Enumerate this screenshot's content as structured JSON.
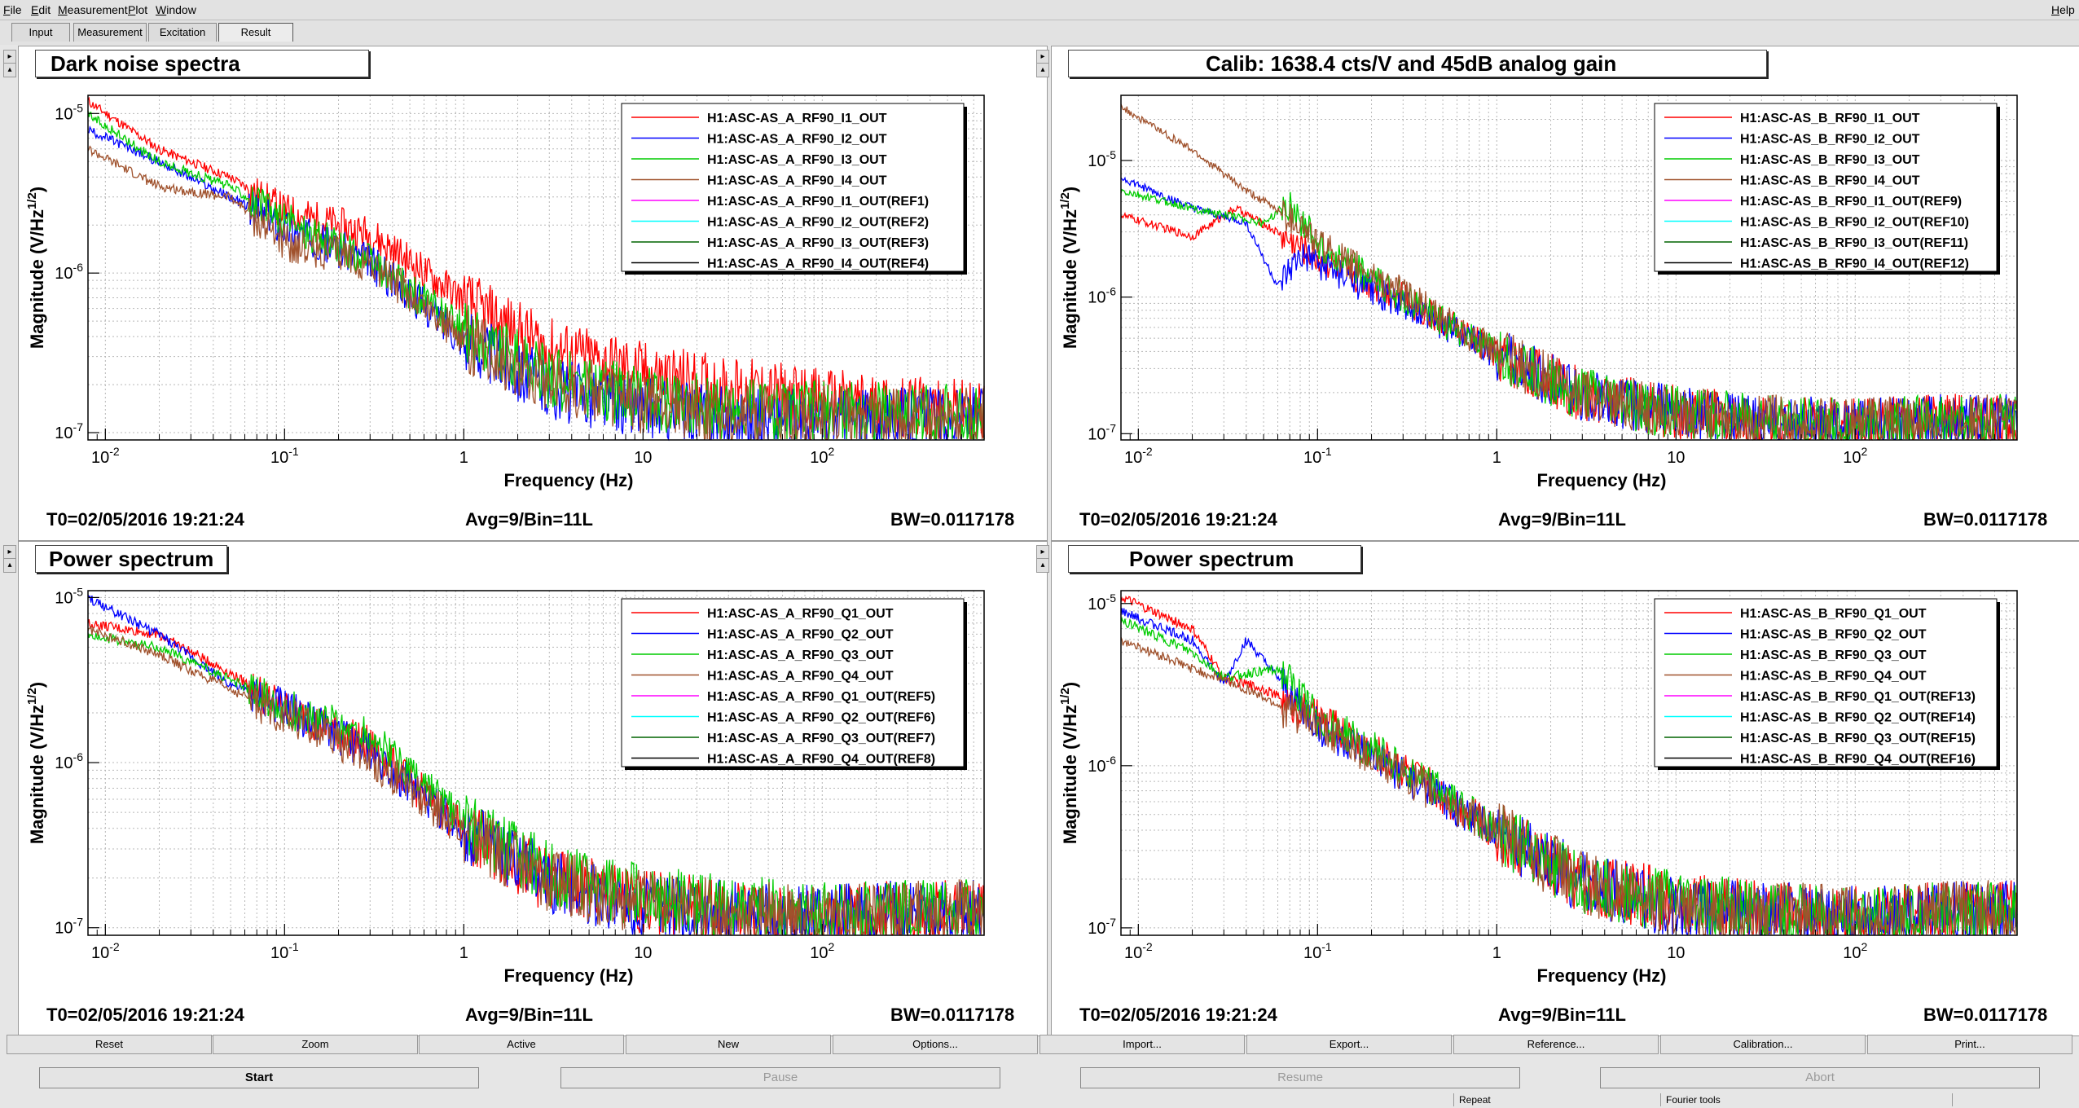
{
  "menu": {
    "left": [
      "File",
      "Edit",
      "Measurement",
      "Plot",
      "Window"
    ],
    "right": "Help"
  },
  "tabs": [
    "Input",
    "Measurement",
    "Excitation",
    "Result"
  ],
  "active_tab": "Result",
  "colors": {
    "red": "#ff0000",
    "blue": "#0000ff",
    "green": "#00cc00",
    "brown": "#a0522d",
    "magenta": "#ff00ff",
    "cyan": "#00ffff",
    "darkgreen": "#006400",
    "black": "#000000"
  },
  "panels": [
    {
      "title": "Dark noise spectra",
      "t0": "T0=02/05/2016 19:21:24",
      "avg": "Avg=9/Bin=11L",
      "bw": "BW=0.0117178"
    },
    {
      "title": "Calib: 1638.4 cts/V and 45dB analog gain",
      "t0": "T0=02/05/2016 19:21:24",
      "avg": "Avg=9/Bin=11L",
      "bw": "BW=0.0117178"
    },
    {
      "title": "Power spectrum",
      "t0": "T0=02/05/2016 19:21:24",
      "avg": "Avg=9/Bin=11L",
      "bw": "BW=0.0117178"
    },
    {
      "title": "Power spectrum",
      "t0": "T0=02/05/2016 19:21:24",
      "avg": "Avg=9/Bin=11L",
      "bw": "BW=0.0117178"
    }
  ],
  "chart_data": [
    {
      "type": "line",
      "xlabel": "Frequency (Hz)",
      "ylabel": "Magnitude (V/Hz^1/2)",
      "xscale": "log",
      "yscale": "log",
      "xlim": [
        0.008,
        800
      ],
      "ylim": [
        9e-08,
        1.3e-05
      ],
      "x_ticks": [
        "10^-2",
        "10^-1",
        "1",
        "10",
        "10^2"
      ],
      "y_ticks": [
        "10^-7",
        "10^-6",
        "10^-5"
      ],
      "grid": true,
      "legend_position": "top-right",
      "series": [
        {
          "name": "H1:ASC-AS_A_RF90_I1_OUT",
          "color": "red",
          "x": [
            0.008,
            0.02,
            0.05,
            0.1,
            0.3,
            1,
            3,
            10,
            30,
            100,
            300,
            800
          ],
          "y": [
            1.2e-05,
            6e-06,
            4e-06,
            2.5e-06,
            1.8e-06,
            7e-07,
            3.5e-07,
            2.5e-07,
            2e-07,
            1.7e-07,
            1.5e-07,
            1.4e-07
          ]
        },
        {
          "name": "H1:ASC-AS_A_RF90_I2_OUT",
          "color": "blue",
          "x": [
            0.008,
            0.02,
            0.05,
            0.1,
            0.3,
            1,
            3,
            10,
            30,
            100,
            300,
            800
          ],
          "y": [
            8e-06,
            5e-06,
            3e-06,
            2e-06,
            1.2e-06,
            4e-07,
            2e-07,
            1.5e-07,
            1.3e-07,
            1.2e-07,
            1.3e-07,
            1.3e-07
          ]
        },
        {
          "name": "H1:ASC-AS_A_RF90_I3_OUT",
          "color": "green",
          "x": [
            0.008,
            0.02,
            0.05,
            0.1,
            0.3,
            1,
            3,
            10,
            30,
            100,
            300,
            800
          ],
          "y": [
            1e-05,
            5e-06,
            3.5e-06,
            2.2e-06,
            1.2e-06,
            4.5e-07,
            2.3e-07,
            1.7e-07,
            1.5e-07,
            1.4e-07,
            1.4e-07,
            1.3e-07
          ]
        },
        {
          "name": "H1:ASC-AS_A_RF90_I4_OUT",
          "color": "brown",
          "x": [
            0.008,
            0.02,
            0.05,
            0.1,
            0.3,
            1,
            3,
            10,
            30,
            100,
            300,
            800
          ],
          "y": [
            6e-06,
            3.5e-06,
            3e-06,
            1.6e-06,
            1.2e-06,
            4e-07,
            2.2e-07,
            1.6e-07,
            1.4e-07,
            1.3e-07,
            1.3e-07,
            1.3e-07
          ]
        },
        {
          "name": "H1:ASC-AS_A_RF90_I1_OUT(REF1)",
          "color": "magenta"
        },
        {
          "name": "H1:ASC-AS_A_RF90_I2_OUT(REF2)",
          "color": "cyan"
        },
        {
          "name": "H1:ASC-AS_A_RF90_I3_OUT(REF3)",
          "color": "darkgreen"
        },
        {
          "name": "H1:ASC-AS_A_RF90_I4_OUT(REF4)",
          "color": "black"
        }
      ]
    },
    {
      "type": "line",
      "xlabel": "Frequency (Hz)",
      "ylabel": "Magnitude (V/Hz^1/2)",
      "xscale": "log",
      "yscale": "log",
      "xlim": [
        0.008,
        800
      ],
      "ylim": [
        9e-08,
        3e-05
      ],
      "x_ticks": [
        "10^-2",
        "10^-1",
        "1",
        "10",
        "10^2"
      ],
      "y_ticks": [
        "10^-7",
        "10^-6",
        "10^-5"
      ],
      "grid": true,
      "legend_position": "top-right",
      "series": [
        {
          "name": "H1:ASC-AS_B_RF90_I1_OUT",
          "color": "red",
          "x": [
            0.008,
            0.02,
            0.035,
            0.06,
            0.1,
            0.3,
            1,
            3,
            10,
            30,
            100,
            300,
            800
          ],
          "y": [
            4e-06,
            2.8e-06,
            4.5e-06,
            3e-06,
            2e-06,
            1e-06,
            4e-07,
            2e-07,
            1.5e-07,
            1.3e-07,
            1.2e-07,
            1.3e-07,
            1.3e-07
          ]
        },
        {
          "name": "H1:ASC-AS_B_RF90_I2_OUT",
          "color": "blue",
          "x": [
            0.008,
            0.02,
            0.04,
            0.06,
            0.08,
            0.1,
            0.3,
            1,
            3,
            10,
            30,
            100,
            300,
            800
          ],
          "y": [
            7.5e-06,
            4.5e-06,
            3.5e-06,
            1.2e-06,
            2e-06,
            1.8e-06,
            9e-07,
            4e-07,
            2e-07,
            1.5e-07,
            1.3e-07,
            1.2e-07,
            1.3e-07,
            1.3e-07
          ]
        },
        {
          "name": "H1:ASC-AS_B_RF90_I3_OUT",
          "color": "green",
          "x": [
            0.008,
            0.02,
            0.05,
            0.07,
            0.1,
            0.3,
            1,
            3,
            10,
            30,
            100,
            300,
            800
          ],
          "y": [
            6e-06,
            4.5e-06,
            3.5e-06,
            5e-06,
            2.5e-06,
            1e-06,
            4e-07,
            2e-07,
            1.5e-07,
            1.3e-07,
            1.2e-07,
            1.3e-07,
            1.3e-07
          ]
        },
        {
          "name": "H1:ASC-AS_B_RF90_I4_OUT",
          "color": "brown",
          "x": [
            0.008,
            0.02,
            0.04,
            0.08,
            0.1,
            0.3,
            1,
            3,
            10,
            30,
            100,
            300,
            800
          ],
          "y": [
            2.5e-05,
            1.2e-05,
            6e-06,
            3.5e-06,
            2.5e-06,
            1.1e-06,
            4e-07,
            2e-07,
            1.5e-07,
            1.3e-07,
            1.2e-07,
            1.3e-07,
            1.3e-07
          ]
        },
        {
          "name": "H1:ASC-AS_B_RF90_I1_OUT(REF9)",
          "color": "magenta"
        },
        {
          "name": "H1:ASC-AS_B_RF90_I2_OUT(REF10)",
          "color": "cyan"
        },
        {
          "name": "H1:ASC-AS_B_RF90_I3_OUT(REF11)",
          "color": "darkgreen"
        },
        {
          "name": "H1:ASC-AS_B_RF90_I4_OUT(REF12)",
          "color": "black"
        }
      ]
    },
    {
      "type": "line",
      "xlabel": "Frequency (Hz)",
      "ylabel": "Magnitude (V/Hz^1/2)",
      "xscale": "log",
      "yscale": "log",
      "xlim": [
        0.008,
        800
      ],
      "ylim": [
        9e-08,
        1.1e-05
      ],
      "x_ticks": [
        "10^-2",
        "10^-1",
        "1",
        "10",
        "10^2"
      ],
      "y_ticks": [
        "10^-7",
        "10^-6",
        "10^-5"
      ],
      "grid": true,
      "legend_position": "top-right",
      "series": [
        {
          "name": "H1:ASC-AS_A_RF90_Q1_OUT",
          "color": "red",
          "x": [
            0.008,
            0.02,
            0.05,
            0.1,
            0.3,
            1,
            3,
            10,
            30,
            100,
            300,
            800
          ],
          "y": [
            7e-06,
            6e-06,
            3.5e-06,
            2.2e-06,
            1.3e-06,
            4e-07,
            2e-07,
            1.5e-07,
            1.3e-07,
            1.2e-07,
            1.3e-07,
            1.3e-07
          ]
        },
        {
          "name": "H1:ASC-AS_A_RF90_Q2_OUT",
          "color": "blue",
          "x": [
            0.008,
            0.02,
            0.05,
            0.1,
            0.3,
            1,
            3,
            10,
            30,
            100,
            300,
            800
          ],
          "y": [
            1e-05,
            6e-06,
            3e-06,
            2.2e-06,
            1.2e-06,
            4e-07,
            2e-07,
            1.4e-07,
            1.3e-07,
            1.2e-07,
            1.3e-07,
            1.3e-07
          ]
        },
        {
          "name": "H1:ASC-AS_A_RF90_Q3_OUT",
          "color": "green",
          "x": [
            0.008,
            0.02,
            0.05,
            0.1,
            0.3,
            1,
            3,
            10,
            30,
            100,
            300,
            800
          ],
          "y": [
            6e-06,
            5e-06,
            3.2e-06,
            2.2e-06,
            1.5e-06,
            4.5e-07,
            2.2e-07,
            1.6e-07,
            1.4e-07,
            1.3e-07,
            1.3e-07,
            1.3e-07
          ]
        },
        {
          "name": "H1:ASC-AS_A_RF90_Q4_OUT",
          "color": "brown",
          "x": [
            0.008,
            0.02,
            0.05,
            0.1,
            0.3,
            1,
            3,
            10,
            30,
            100,
            300,
            800
          ],
          "y": [
            6.5e-06,
            4.5e-06,
            2.8e-06,
            2e-06,
            1.1e-06,
            4e-07,
            2e-07,
            1.5e-07,
            1.3e-07,
            1.2e-07,
            1.3e-07,
            1.3e-07
          ]
        },
        {
          "name": "H1:ASC-AS_A_RF90_Q1_OUT(REF5)",
          "color": "magenta"
        },
        {
          "name": "H1:ASC-AS_A_RF90_Q2_OUT(REF6)",
          "color": "cyan"
        },
        {
          "name": "H1:ASC-AS_A_RF90_Q3_OUT(REF7)",
          "color": "darkgreen"
        },
        {
          "name": "H1:ASC-AS_A_RF90_Q4_OUT(REF8)",
          "color": "black"
        }
      ]
    },
    {
      "type": "line",
      "xlabel": "Frequency (Hz)",
      "ylabel": "Magnitude (V/Hz^1/2)",
      "xscale": "log",
      "yscale": "log",
      "xlim": [
        0.008,
        800
      ],
      "ylim": [
        9e-08,
        1.2e-05
      ],
      "x_ticks": [
        "10^-2",
        "10^-1",
        "1",
        "10",
        "10^2"
      ],
      "y_ticks": [
        "10^-7",
        "10^-6",
        "10^-5"
      ],
      "grid": true,
      "legend_position": "top-right",
      "series": [
        {
          "name": "H1:ASC-AS_B_RF90_Q1_OUT",
          "color": "red",
          "x": [
            0.008,
            0.02,
            0.03,
            0.05,
            0.1,
            0.3,
            1,
            3,
            10,
            30,
            100,
            300,
            800
          ],
          "y": [
            1.1e-05,
            7e-06,
            3.5e-06,
            3e-06,
            2e-06,
            1e-06,
            4e-07,
            2e-07,
            1.5e-07,
            1.3e-07,
            1.2e-07,
            1.3e-07,
            1.3e-07
          ]
        },
        {
          "name": "H1:ASC-AS_B_RF90_Q2_OUT",
          "color": "blue",
          "x": [
            0.008,
            0.02,
            0.03,
            0.04,
            0.06,
            0.1,
            0.3,
            1,
            3,
            10,
            30,
            100,
            300,
            800
          ],
          "y": [
            9e-06,
            6e-06,
            3.2e-06,
            6e-06,
            3.5e-06,
            1.8e-06,
            9e-07,
            4e-07,
            2e-07,
            1.4e-07,
            1.3e-07,
            1.2e-07,
            1.3e-07,
            1.3e-07
          ]
        },
        {
          "name": "H1:ASC-AS_B_RF90_Q3_OUT",
          "color": "green",
          "x": [
            0.008,
            0.02,
            0.03,
            0.06,
            0.1,
            0.3,
            1,
            3,
            10,
            30,
            100,
            300,
            800
          ],
          "y": [
            8e-06,
            5e-06,
            3.5e-06,
            4e-06,
            2e-06,
            1e-06,
            4e-07,
            2e-07,
            1.5e-07,
            1.3e-07,
            1.2e-07,
            1.3e-07,
            1.3e-07
          ]
        },
        {
          "name": "H1:ASC-AS_B_RF90_Q4_OUT",
          "color": "brown",
          "x": [
            0.008,
            0.02,
            0.04,
            0.07,
            0.1,
            0.3,
            1,
            3,
            10,
            30,
            100,
            300,
            800
          ],
          "y": [
            6e-06,
            4e-06,
            3e-06,
            2.2e-06,
            1.8e-06,
            9e-07,
            4e-07,
            2e-07,
            1.4e-07,
            1.3e-07,
            1.2e-07,
            1.3e-07,
            1.3e-07
          ]
        },
        {
          "name": "H1:ASC-AS_B_RF90_Q1_OUT(REF13)",
          "color": "magenta"
        },
        {
          "name": "H1:ASC-AS_B_RF90_Q2_OUT(REF14)",
          "color": "cyan"
        },
        {
          "name": "H1:ASC-AS_B_RF90_Q3_OUT(REF15)",
          "color": "darkgreen"
        },
        {
          "name": "H1:ASC-AS_B_RF90_Q4_OUT(REF16)",
          "color": "black"
        }
      ]
    }
  ],
  "buttons_row1": [
    "Reset",
    "Zoom",
    "Active",
    "New",
    "Options...",
    "Import...",
    "Export...",
    "Reference...",
    "Calibration...",
    "Print..."
  ],
  "buttons_row2": [
    {
      "label": "Start",
      "enabled": true
    },
    {
      "label": "Pause",
      "enabled": false
    },
    {
      "label": "Resume",
      "enabled": false
    },
    {
      "label": "Abort",
      "enabled": false
    }
  ],
  "status": [
    "Repeat",
    "Fourier tools"
  ]
}
